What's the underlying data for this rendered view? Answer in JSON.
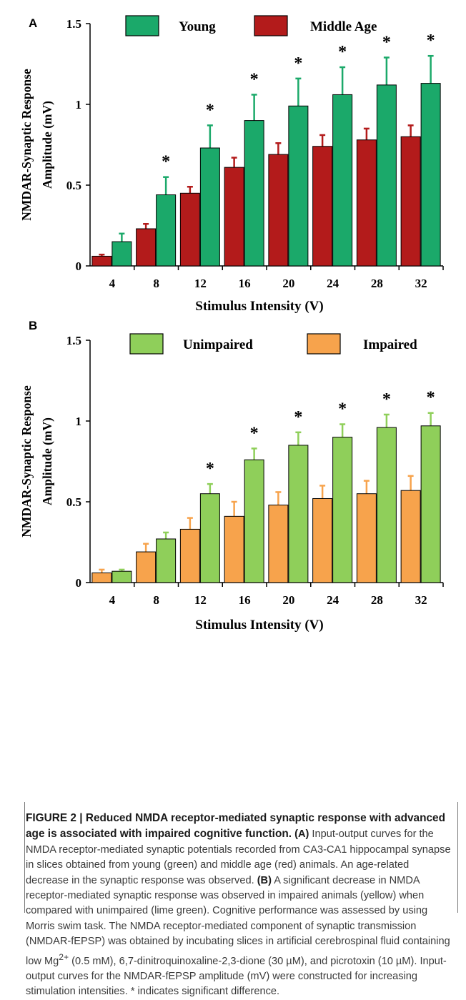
{
  "chart_data": [
    {
      "type": "bar",
      "panel_label": "A",
      "categories": [
        "4",
        "8",
        "12",
        "16",
        "20",
        "24",
        "28",
        "32"
      ],
      "series": [
        {
          "name": "Middle Age",
          "values": [
            0.06,
            0.23,
            0.45,
            0.61,
            0.69,
            0.74,
            0.78,
            0.8
          ],
          "errors": [
            0.01,
            0.03,
            0.04,
            0.06,
            0.07,
            0.07,
            0.07,
            0.07
          ],
          "color": "#b31b1b"
        },
        {
          "name": "Young",
          "values": [
            0.15,
            0.44,
            0.73,
            0.9,
            0.99,
            1.06,
            1.12,
            1.13
          ],
          "errors": [
            0.05,
            0.11,
            0.14,
            0.16,
            0.17,
            0.17,
            0.17,
            0.17
          ],
          "color": "#1ba96a"
        }
      ],
      "legend": [
        "Young",
        "Middle Age"
      ],
      "significance": [
        "",
        "*",
        "*",
        "*",
        "*",
        "*",
        "*",
        "*"
      ],
      "ylim": [
        0,
        1.5
      ],
      "yticks": [
        "0",
        "0.5",
        "1",
        "1.5"
      ],
      "ylabel_line1": "NMDAR-Synaptic Response",
      "ylabel_line2": "Amplitude (mV)",
      "xlabel": "Stimulus Intensity (V)"
    },
    {
      "type": "bar",
      "panel_label": "B",
      "categories": [
        "4",
        "8",
        "12",
        "16",
        "20",
        "24",
        "28",
        "32"
      ],
      "series": [
        {
          "name": "Impaired",
          "values": [
            0.06,
            0.19,
            0.33,
            0.41,
            0.48,
            0.52,
            0.55,
            0.57
          ],
          "errors": [
            0.02,
            0.05,
            0.07,
            0.09,
            0.08,
            0.08,
            0.08,
            0.09
          ],
          "color": "#f7a34c"
        },
        {
          "name": "Unimpaired",
          "values": [
            0.07,
            0.27,
            0.55,
            0.76,
            0.85,
            0.9,
            0.96,
            0.97
          ],
          "errors": [
            0.01,
            0.04,
            0.06,
            0.07,
            0.08,
            0.08,
            0.08,
            0.08
          ],
          "color": "#8fcf5a"
        }
      ],
      "legend": [
        "Unimpaired",
        "Impaired"
      ],
      "significance": [
        "",
        "",
        "*",
        "*",
        "*",
        "*",
        "*",
        "*"
      ],
      "ylim": [
        0,
        1.5
      ],
      "yticks": [
        "0",
        "0.5",
        "1",
        "1.5"
      ],
      "ylabel_line1": "NMDAR-Synaptic Response",
      "ylabel_line2": "Amplitude (mV)",
      "xlabel": "Stimulus Intensity (V)"
    }
  ],
  "caption": {
    "title": "FIGURE 2 | Reduced NMDA receptor-mediated synaptic response with advanced age is associated with impaired cognitive function.",
    "ref_a": "(A)",
    "text_a": "Input-output curves for the NMDA receptor-mediated synaptic potentials recorded from CA3-CA1 hippocampal synapse in slices obtained from young (green) and middle age (red) animals. An age-related decrease in the synaptic response was observed.",
    "ref_b": "(B)",
    "text_b_1": "A significant decrease in NMDA receptor-mediated synaptic response was observed in impaired animals (yellow) when compared with unimpaired (lime green). Cognitive performance was assessed by using Morris swim task. The NMDA receptor-mediated component of synaptic transmission (NMDAR-fEPSP) was obtained by incubating slices in artificial cerebrospinal fluid containing low Mg",
    "superscript": "2+",
    "text_b_2": "(0.5 mM), 6,7-dinitroquinoxaline-2,3-dione (30 µM), and picrotoxin (10 µM). Input-output curves for the NMDAR-fEPSP amplitude (mV) were constructed for increasing stimulation intensities. * indicates significant difference."
  }
}
